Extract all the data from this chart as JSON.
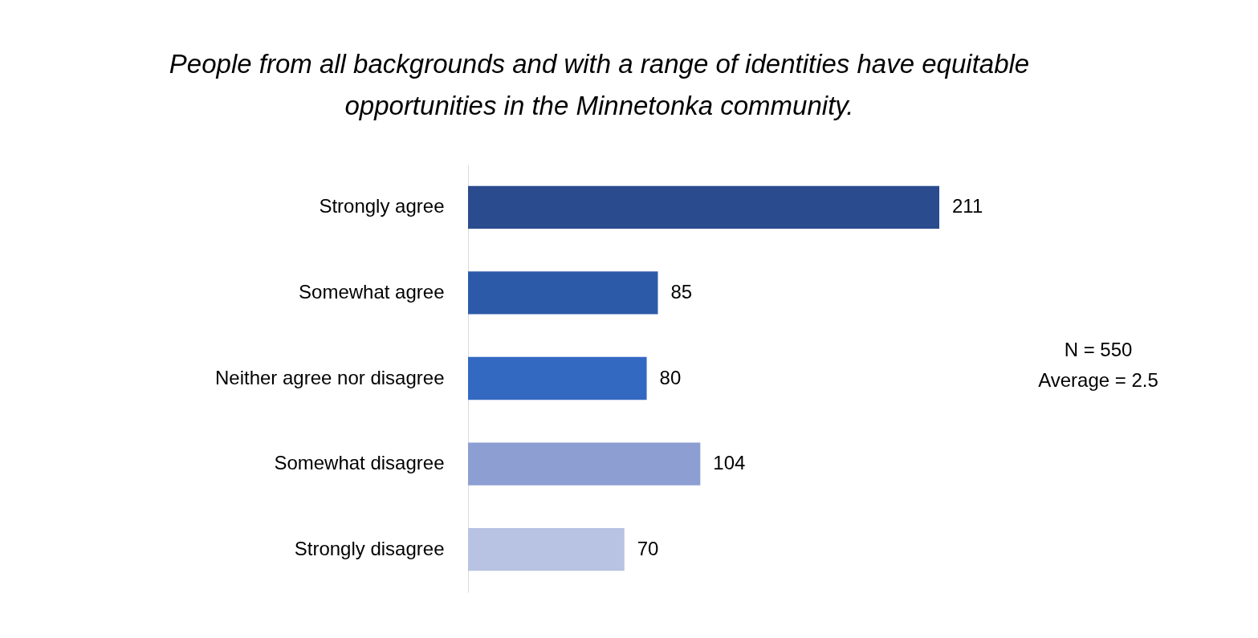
{
  "chart_data": {
    "type": "bar",
    "orientation": "horizontal",
    "title": [
      "People from all backgrounds and with a range of identities have equitable",
      "opportunities in the Minnetonka community."
    ],
    "categories": [
      "Strongly agree",
      "Somewhat agree",
      "Neither agree nor disagree",
      "Somewhat disagree",
      "Strongly disagree"
    ],
    "values": [
      211,
      85,
      80,
      104,
      70
    ],
    "colors": [
      "#2b4b8f",
      "#2d5aa8",
      "#3469c2",
      "#8d9fd2",
      "#b8c2e2"
    ],
    "data_labels": true,
    "annotations": [
      "N = 550",
      "Average = 2.5"
    ]
  }
}
